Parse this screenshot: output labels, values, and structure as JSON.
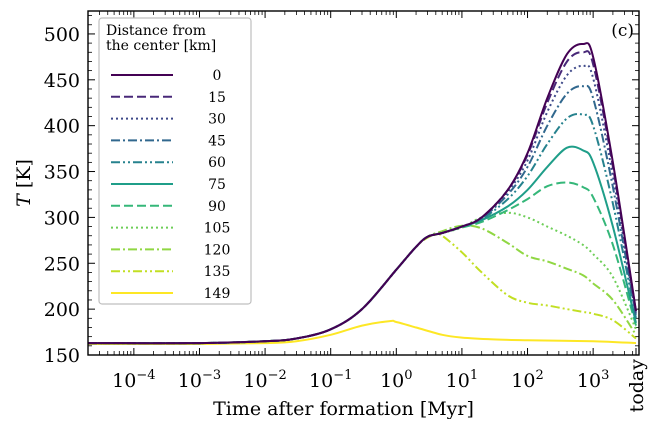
{
  "chart_data": {
    "type": "line",
    "panel_label": "(c)",
    "xlabel": "Time after formation [Myr]",
    "ylabel": "T [K]",
    "x_scale": "log",
    "xlim": [
      2e-05,
      5000
    ],
    "ylim": [
      150,
      525
    ],
    "x_ticks": [
      {
        "value": 0.0001,
        "base": "10",
        "exp": "−4"
      },
      {
        "value": 0.001,
        "base": "10",
        "exp": "−3"
      },
      {
        "value": 0.01,
        "base": "10",
        "exp": "−2"
      },
      {
        "value": 0.1,
        "base": "10",
        "exp": "−1"
      },
      {
        "value": 1,
        "base": "10",
        "exp": "0"
      },
      {
        "value": 10,
        "base": "10",
        "exp": "1"
      },
      {
        "value": 100,
        "base": "10",
        "exp": "2"
      },
      {
        "value": 1000,
        "base": "10",
        "exp": "3"
      }
    ],
    "x_extra_tick": {
      "value": 4500,
      "label": "today"
    },
    "y_ticks": [
      150,
      200,
      250,
      300,
      350,
      400,
      450,
      500
    ],
    "legend": {
      "title_lines": [
        "Distance from",
        "the center [km]"
      ],
      "placement": "upper-left"
    },
    "series": [
      {
        "name": "0",
        "color": "#440154",
        "dash": "solid",
        "x": [
          2e-05,
          0.001,
          0.01,
          0.03,
          0.1,
          0.3,
          1,
          2,
          3,
          5,
          10,
          20,
          50,
          100,
          200,
          400,
          700,
          1000,
          2000,
          4500
        ],
        "y": [
          163,
          163,
          165,
          168,
          178,
          200,
          243,
          268,
          279,
          283,
          290,
          300,
          330,
          370,
          430,
          478,
          489,
          475,
          360,
          198
        ]
      },
      {
        "name": "15",
        "color": "#482878",
        "dash": "dashed",
        "x": [
          2e-05,
          0.001,
          0.01,
          0.03,
          0.1,
          0.3,
          1,
          2,
          3,
          5,
          10,
          20,
          50,
          100,
          200,
          400,
          700,
          1000,
          2000,
          4500
        ],
        "y": [
          163,
          163,
          165,
          168,
          178,
          200,
          243,
          268,
          279,
          283,
          290,
          300,
          330,
          368,
          425,
          470,
          480,
          467,
          355,
          197
        ]
      },
      {
        "name": "30",
        "color": "#3e4989",
        "dash": "dotted",
        "x": [
          2e-05,
          0.001,
          0.01,
          0.03,
          0.1,
          0.3,
          1,
          2,
          3,
          5,
          10,
          20,
          50,
          100,
          200,
          400,
          700,
          1000,
          2000,
          4500
        ],
        "y": [
          163,
          163,
          165,
          168,
          178,
          200,
          243,
          268,
          279,
          283,
          290,
          300,
          328,
          362,
          415,
          455,
          465,
          452,
          345,
          195
        ]
      },
      {
        "name": "45",
        "color": "#31688e",
        "dash": "dashdot",
        "x": [
          2e-05,
          0.001,
          0.01,
          0.03,
          0.1,
          0.3,
          1,
          2,
          3,
          5,
          10,
          20,
          50,
          100,
          200,
          400,
          700,
          1000,
          2000,
          4500
        ],
        "y": [
          163,
          163,
          165,
          168,
          178,
          200,
          243,
          268,
          279,
          283,
          290,
          299,
          325,
          355,
          400,
          435,
          443,
          430,
          333,
          193
        ]
      },
      {
        "name": "60",
        "color": "#26828e",
        "dash": "dashdotdot",
        "x": [
          2e-05,
          0.001,
          0.01,
          0.03,
          0.1,
          0.3,
          1,
          2,
          3,
          5,
          10,
          20,
          50,
          100,
          200,
          400,
          700,
          1000,
          2000,
          4500
        ],
        "y": [
          163,
          163,
          165,
          168,
          178,
          200,
          243,
          268,
          279,
          283,
          290,
          298,
          320,
          345,
          380,
          408,
          412,
          400,
          315,
          190
        ]
      },
      {
        "name": "75",
        "color": "#1f9e89",
        "dash": "solid",
        "x": [
          2e-05,
          0.001,
          0.01,
          0.03,
          0.1,
          0.3,
          1,
          2,
          3,
          5,
          10,
          20,
          50,
          100,
          200,
          400,
          700,
          1000,
          2000,
          4500
        ],
        "y": [
          163,
          163,
          165,
          168,
          178,
          200,
          243,
          268,
          279,
          283,
          290,
          297,
          312,
          330,
          355,
          376,
          373,
          360,
          290,
          185
        ]
      },
      {
        "name": "90",
        "color": "#35b779",
        "dash": "dashed",
        "x": [
          2e-05,
          0.001,
          0.01,
          0.03,
          0.1,
          0.3,
          1,
          2,
          3,
          5,
          10,
          20,
          50,
          100,
          200,
          400,
          700,
          1000,
          2000,
          4500
        ],
        "y": [
          163,
          163,
          165,
          168,
          178,
          200,
          243,
          268,
          279,
          283,
          289,
          295,
          308,
          320,
          334,
          338,
          333,
          322,
          270,
          182
        ]
      },
      {
        "name": "105",
        "color": "#6ece58",
        "dash": "dotted",
        "x": [
          2e-05,
          0.001,
          0.01,
          0.03,
          0.1,
          0.3,
          1,
          2,
          3,
          5,
          10,
          20,
          50,
          100,
          200,
          400,
          700,
          1000,
          2000,
          4500
        ],
        "y": [
          163,
          163,
          165,
          168,
          178,
          200,
          243,
          268,
          279,
          283,
          289,
          300,
          305,
          300,
          290,
          280,
          270,
          260,
          235,
          178
        ]
      },
      {
        "name": "120",
        "color": "#90d743",
        "dash": "dashdot",
        "x": [
          2e-05,
          0.001,
          0.01,
          0.03,
          0.1,
          0.3,
          1,
          2,
          3,
          5,
          10,
          20,
          50,
          100,
          200,
          400,
          700,
          1000,
          2000,
          4500
        ],
        "y": [
          163,
          163,
          165,
          168,
          178,
          200,
          243,
          268,
          279,
          285,
          291,
          288,
          272,
          258,
          252,
          244,
          237,
          228,
          210,
          172
        ]
      },
      {
        "name": "135",
        "color": "#c2df23",
        "dash": "dashdotdot",
        "x": [
          2e-05,
          0.001,
          0.01,
          0.03,
          0.1,
          0.3,
          1,
          2,
          3,
          4,
          5,
          10,
          20,
          50,
          100,
          200,
          400,
          700,
          1000,
          2000,
          4500
        ],
        "y": [
          163,
          163,
          165,
          168,
          178,
          200,
          243,
          268,
          278,
          281,
          280,
          262,
          240,
          215,
          207,
          204,
          200,
          197,
          195,
          188,
          168
        ]
      },
      {
        "name": "149",
        "color": "#fde725",
        "dash": "solid",
        "x": [
          2e-05,
          0.001,
          0.01,
          0.03,
          0.1,
          0.3,
          0.8,
          1,
          2,
          5,
          10,
          30,
          100,
          1000,
          4500
        ],
        "y": [
          162,
          162,
          163,
          165,
          172,
          182,
          187,
          186,
          180,
          172,
          169,
          167,
          166,
          165,
          163
        ]
      }
    ]
  }
}
